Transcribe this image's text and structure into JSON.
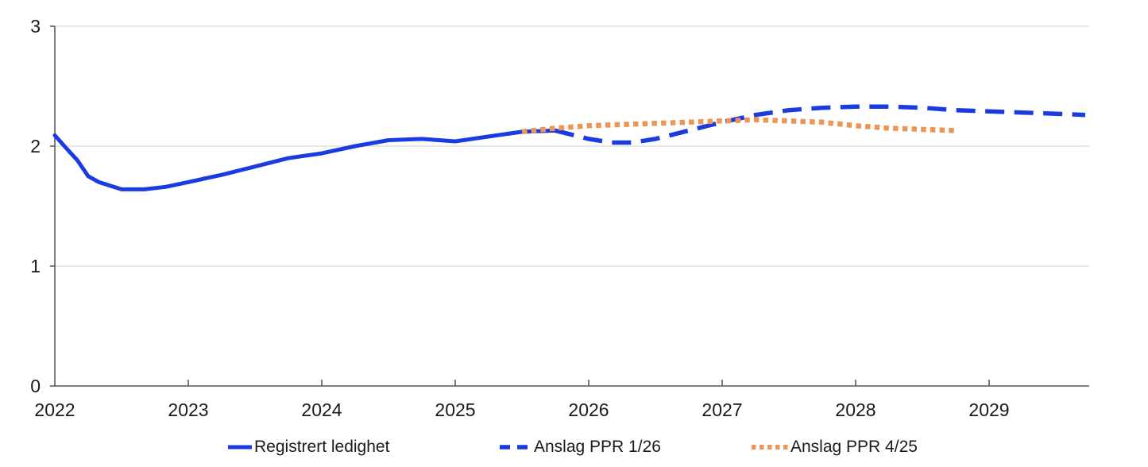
{
  "chart_data": {
    "type": "line",
    "title": "",
    "xlabel": "",
    "ylabel": "",
    "x_range": [
      2022,
      2029.75
    ],
    "ylim": [
      0,
      3
    ],
    "y_ticks": [
      0,
      1,
      2,
      3
    ],
    "y_tick_labels": [
      "0",
      "1",
      "2",
      "3"
    ],
    "x_ticks": [
      2022,
      2023,
      2024,
      2025,
      2026,
      2027,
      2028,
      2029
    ],
    "x_tick_labels": [
      "2022",
      "2023",
      "2024",
      "2025",
      "2026",
      "2027",
      "2028",
      "2029"
    ],
    "grid": "horizontal-gridlines-on",
    "legend_position": "bottom",
    "series": [
      {
        "name": "Registrert ledighet",
        "style": "solid",
        "color": "#1b3be2",
        "points": [
          [
            2022.0,
            2.09
          ],
          [
            2022.08,
            1.99
          ],
          [
            2022.17,
            1.88
          ],
          [
            2022.25,
            1.75
          ],
          [
            2022.33,
            1.7
          ],
          [
            2022.5,
            1.64
          ],
          [
            2022.67,
            1.64
          ],
          [
            2022.83,
            1.66
          ],
          [
            2023.0,
            1.7
          ],
          [
            2023.25,
            1.76
          ],
          [
            2023.5,
            1.83
          ],
          [
            2023.75,
            1.9
          ],
          [
            2024.0,
            1.94
          ],
          [
            2024.25,
            2.0
          ],
          [
            2024.5,
            2.05
          ],
          [
            2024.75,
            2.06
          ],
          [
            2025.0,
            2.04
          ],
          [
            2025.25,
            2.08
          ],
          [
            2025.5,
            2.12
          ],
          [
            2025.75,
            2.13
          ]
        ]
      },
      {
        "name": "Anslag PPR 1/26",
        "style": "dashed",
        "color": "#1b3be2",
        "points": [
          [
            2025.75,
            2.13
          ],
          [
            2026.0,
            2.06
          ],
          [
            2026.17,
            2.03
          ],
          [
            2026.33,
            2.03
          ],
          [
            2026.5,
            2.06
          ],
          [
            2026.75,
            2.13
          ],
          [
            2027.0,
            2.2
          ],
          [
            2027.25,
            2.26
          ],
          [
            2027.5,
            2.3
          ],
          [
            2027.75,
            2.32
          ],
          [
            2028.0,
            2.33
          ],
          [
            2028.25,
            2.33
          ],
          [
            2028.5,
            2.32
          ],
          [
            2028.75,
            2.3
          ],
          [
            2029.0,
            2.29
          ],
          [
            2029.25,
            2.28
          ],
          [
            2029.5,
            2.27
          ],
          [
            2029.72,
            2.26
          ]
        ]
      },
      {
        "name": "Anslag PPR 4/25",
        "style": "dotted",
        "color": "#ec9655",
        "points": [
          [
            2025.5,
            2.12
          ],
          [
            2025.75,
            2.15
          ],
          [
            2026.0,
            2.17
          ],
          [
            2026.25,
            2.18
          ],
          [
            2026.5,
            2.19
          ],
          [
            2026.75,
            2.2
          ],
          [
            2027.0,
            2.21
          ],
          [
            2027.25,
            2.22
          ],
          [
            2027.5,
            2.21
          ],
          [
            2027.75,
            2.2
          ],
          [
            2028.0,
            2.17
          ],
          [
            2028.25,
            2.15
          ],
          [
            2028.5,
            2.14
          ],
          [
            2028.75,
            2.13
          ]
        ]
      }
    ]
  },
  "colors": {
    "background": "#ffffff",
    "gridline": "#d9d9d9",
    "axis": "#595959",
    "tick_label": "#1a1a1a",
    "legend_text": "#1a1a1a",
    "series_blue": "#1b3be2",
    "series_orange": "#ec9655"
  }
}
